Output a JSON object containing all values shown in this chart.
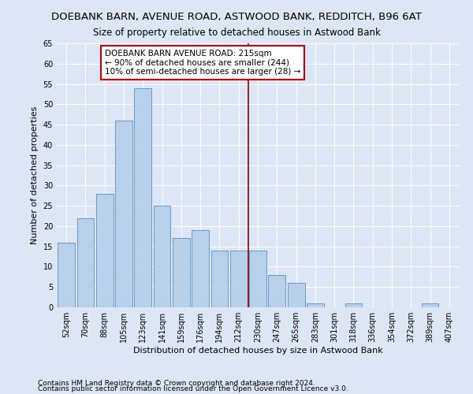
{
  "title": "DOEBANK BARN, AVENUE ROAD, ASTWOOD BANK, REDDITCH, B96 6AT",
  "subtitle": "Size of property relative to detached houses in Astwood Bank",
  "xlabel": "Distribution of detached houses by size in Astwood Bank",
  "ylabel": "Number of detached properties",
  "categories": [
    "52sqm",
    "70sqm",
    "88sqm",
    "105sqm",
    "123sqm",
    "141sqm",
    "159sqm",
    "176sqm",
    "194sqm",
    "212sqm",
    "230sqm",
    "247sqm",
    "265sqm",
    "283sqm",
    "301sqm",
    "318sqm",
    "336sqm",
    "354sqm",
    "372sqm",
    "389sqm",
    "407sqm"
  ],
  "values": [
    16,
    22,
    28,
    46,
    54,
    25,
    17,
    19,
    14,
    14,
    14,
    8,
    6,
    1,
    0,
    1,
    0,
    0,
    0,
    1,
    0
  ],
  "bar_color": "#b8d0ea",
  "bar_edge_color": "#6699cc",
  "reference_line_x": 9.5,
  "annotation_line1": "DOEBANK BARN AVENUE ROAD: 215sqm",
  "annotation_line2": "← 90% of detached houses are smaller (244)",
  "annotation_line3": "10% of semi-detached houses are larger (28) →",
  "ylim": [
    0,
    65
  ],
  "yticks": [
    0,
    5,
    10,
    15,
    20,
    25,
    30,
    35,
    40,
    45,
    50,
    55,
    60,
    65
  ],
  "footer_line1": "Contains HM Land Registry data © Crown copyright and database right 2024.",
  "footer_line2": "Contains public sector information licensed under the Open Government Licence v3.0.",
  "bg_color": "#dce6f5",
  "plot_bg_color": "#dce6f5",
  "title_fontsize": 9.5,
  "subtitle_fontsize": 8.5,
  "axis_label_fontsize": 8,
  "tick_fontsize": 7,
  "annotation_fontsize": 7.5,
  "footer_fontsize": 6.5
}
